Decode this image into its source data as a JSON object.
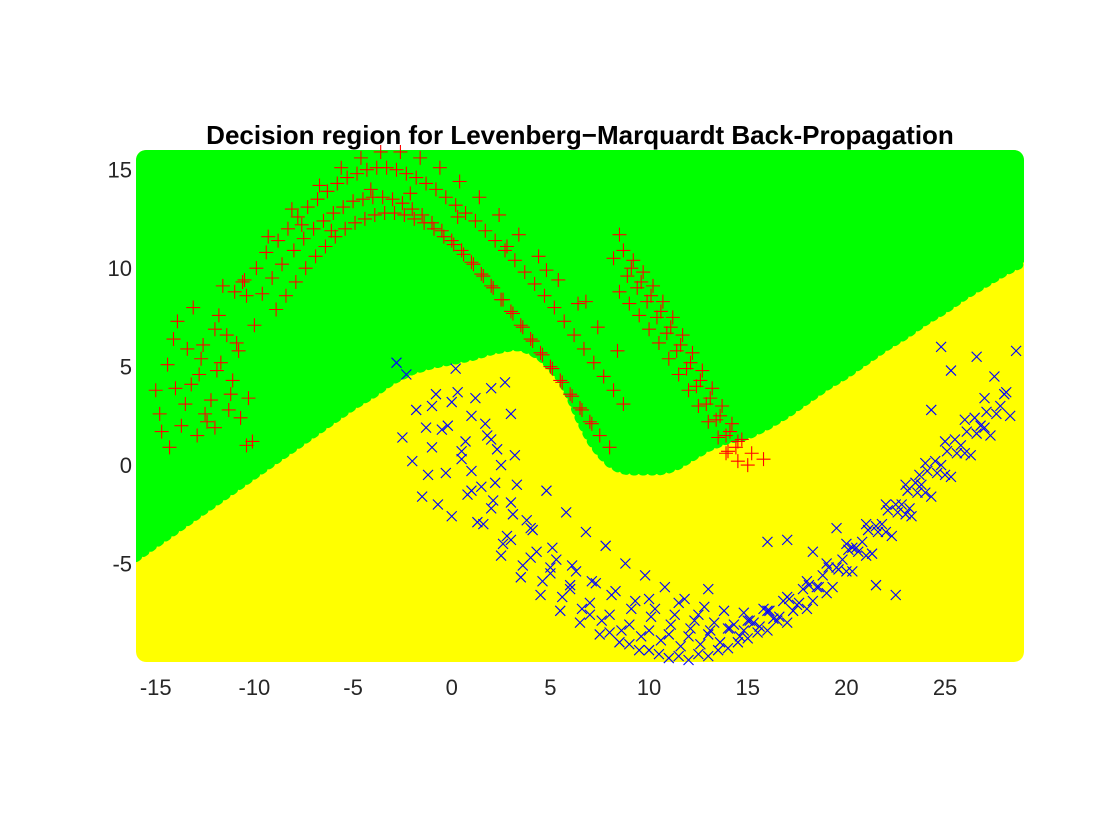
{
  "chart_data": {
    "type": "scatter",
    "title": "Decision region for Levenberg−Marquardt Back-Propagation",
    "xlabel": "",
    "ylabel": "",
    "xlim": [
      -16,
      29
    ],
    "ylim": [
      -10,
      16
    ],
    "xticks": [
      -15,
      -10,
      -5,
      0,
      5,
      10,
      15,
      20,
      25
    ],
    "yticks": [
      -5,
      0,
      5,
      10,
      15
    ],
    "grid": false,
    "background_region": {
      "color": "#ffff00",
      "name": "yellow"
    },
    "regions": [
      {
        "color": "#00ff00",
        "boundary_x": [
          -16,
          -15,
          -14,
          -13,
          -12,
          -11,
          -10,
          -9,
          -8,
          -7,
          -6,
          -5,
          -4,
          -3,
          -2,
          -1,
          0,
          1,
          2,
          3,
          3.5,
          4,
          4.5,
          5,
          5.5,
          6,
          6.5,
          7,
          7.5,
          8,
          8.5,
          9,
          9.5,
          10,
          10.5,
          11,
          11.5,
          12,
          12.5,
          13,
          13.5,
          14,
          14.5,
          15,
          16,
          17,
          18,
          19,
          20,
          21,
          22,
          23,
          24,
          25,
          26,
          27,
          28,
          29
        ],
        "boundary_y": [
          -4.7,
          -4,
          -3.3,
          -2.6,
          -1.9,
          -1.2,
          -0.5,
          0.2,
          0.9,
          1.6,
          2.3,
          3,
          3.6,
          4.3,
          4.8,
          5.1,
          5.3,
          5.5,
          5.8,
          6,
          6,
          5.8,
          5.5,
          5,
          4.4,
          3.5,
          2.3,
          1.3,
          0.6,
          0.1,
          -0.2,
          -0.3,
          -0.3,
          -0.3,
          -0.3,
          -0.2,
          0,
          0.3,
          0.6,
          0.9,
          1.1,
          1.3,
          1.4,
          1.5,
          2,
          2.6,
          3.3,
          4,
          4.6,
          5.3,
          6,
          6.6,
          7.3,
          7.9,
          8.6,
          9.2,
          9.8,
          10.3
        ]
      }
    ],
    "series": [
      {
        "marker": "plus",
        "color": "#ff0000",
        "x": [
          -15.0,
          -14.8,
          -14.4,
          -14.1,
          -14.7,
          -13.9,
          -13.5,
          -13.1,
          -12.8,
          -12.4,
          -12.0,
          -11.6,
          -11.2,
          -10.8,
          -10.4,
          -10.1,
          -14.3,
          -13.7,
          -13.2,
          -12.7,
          -12.2,
          -11.8,
          -11.3,
          -10.9,
          -10.5,
          -12.9,
          -12.5,
          -11.9,
          -11.4,
          -13.4,
          -12.0,
          -11.1,
          -10.7,
          -14.0,
          -12.6,
          -11.7,
          -10.3,
          -10.0,
          -10.4,
          -11.0,
          -10.6,
          -9.9,
          -9.4,
          -8.8,
          -8.3,
          -7.8,
          -7.3,
          -6.8,
          -6.3,
          -5.8,
          -5.3,
          -4.8,
          -4.3,
          -3.8,
          -3.3,
          -2.8,
          -2.3,
          -1.8,
          -1.3,
          -0.8,
          -0.3,
          0.2,
          0.7,
          1.2,
          1.7,
          2.2,
          2.7,
          3.2,
          3.7,
          4.2,
          4.7,
          5.2,
          5.7,
          6.2,
          6.7,
          7.2,
          7.7,
          8.2,
          8.7,
          -9.6,
          -9.1,
          -8.6,
          -8.0,
          -7.5,
          -7.0,
          -6.5,
          -6.0,
          -5.5,
          -5.0,
          -4.5,
          -4.0,
          -3.5,
          -3.0,
          -2.5,
          -2.0,
          -1.5,
          -1.0,
          -0.5,
          0.0,
          0.5,
          1.0,
          1.5,
          2.0,
          2.5,
          3.0,
          3.5,
          4.0,
          4.5,
          5.0,
          5.5,
          6.0,
          6.5,
          7.0,
          7.5,
          8.0,
          -8.9,
          -8.4,
          -7.9,
          -7.4,
          -6.9,
          -6.4,
          -5.9,
          -5.4,
          -4.9,
          -4.4,
          -3.9,
          -3.4,
          -2.9,
          -2.4,
          -1.9,
          -1.4,
          -0.9,
          -0.4,
          0.1,
          0.6,
          1.1,
          1.6,
          2.1,
          2.6,
          3.1,
          3.6,
          4.1,
          4.6,
          5.1,
          5.6,
          6.1,
          6.6,
          7.1,
          -9.3,
          -8.1,
          -6.7,
          -5.6,
          -4.6,
          -3.6,
          -2.6,
          -1.6,
          -0.6,
          0.4,
          1.4,
          2.4,
          3.4,
          4.4,
          5.4,
          6.4,
          7.4,
          8.4,
          -7.6,
          -6.1,
          -4.1,
          -2.1,
          0.3,
          2.8,
          4.8,
          6.8,
          8.5,
          8.2,
          8.7,
          9.2,
          9.7,
          10.2,
          10.7,
          11.2,
          11.7,
          12.2,
          12.7,
          13.2,
          13.7,
          14.2,
          14.7,
          15.2,
          8.5,
          9.0,
          9.5,
          10.0,
          10.5,
          11.0,
          11.5,
          12.0,
          12.5,
          13.0,
          13.5,
          14.0,
          14.5,
          15.0,
          8.9,
          9.4,
          9.9,
          10.4,
          10.9,
          11.4,
          11.9,
          12.4,
          12.9,
          13.4,
          13.9,
          14.4,
          9.1,
          9.6,
          10.1,
          10.6,
          11.1,
          11.6,
          12.1,
          12.6,
          13.1,
          13.6,
          14.1,
          15.8,
          13.9,
          14.5
        ],
        "y": [
          3.8,
          2.6,
          5.1,
          6.4,
          1.7,
          7.3,
          3.1,
          8.0,
          4.6,
          2.2,
          6.9,
          9.1,
          3.6,
          5.8,
          8.6,
          1.2,
          0.9,
          2.0,
          4.1,
          5.4,
          3.3,
          7.6,
          2.8,
          6.2,
          9.4,
          1.5,
          2.6,
          4.8,
          6.6,
          5.9,
          1.9,
          4.3,
          2.4,
          3.9,
          6.1,
          5.2,
          3.4,
          7.1,
          1.0,
          8.8,
          9.3,
          10.0,
          10.8,
          11.4,
          12.0,
          12.6,
          13.1,
          13.5,
          13.9,
          14.3,
          14.6,
          14.8,
          15.0,
          15.1,
          15.1,
          15.0,
          14.8,
          14.6,
          14.3,
          14.0,
          13.6,
          13.2,
          12.8,
          12.4,
          11.9,
          11.4,
          10.9,
          10.4,
          9.8,
          9.2,
          8.6,
          8.0,
          7.3,
          6.6,
          5.9,
          5.2,
          4.5,
          3.8,
          3.1,
          8.7,
          9.5,
          10.2,
          10.9,
          11.5,
          12.0,
          12.4,
          12.8,
          13.1,
          13.4,
          13.5,
          13.6,
          13.6,
          13.5,
          13.3,
          13.0,
          12.7,
          12.3,
          11.9,
          11.4,
          10.9,
          10.3,
          9.7,
          9.1,
          8.4,
          7.8,
          7.1,
          6.4,
          5.7,
          5.0,
          4.3,
          3.6,
          2.9,
          2.2,
          1.5,
          0.9,
          7.9,
          8.6,
          9.3,
          10.0,
          10.6,
          11.1,
          11.6,
          12.0,
          12.3,
          12.5,
          12.7,
          12.8,
          12.8,
          12.7,
          12.5,
          12.3,
          12.0,
          11.6,
          11.2,
          10.7,
          10.2,
          9.6,
          9.0,
          8.4,
          7.7,
          7.0,
          6.3,
          5.6,
          4.9,
          4.2,
          3.5,
          2.8,
          2.1,
          11.6,
          13.0,
          14.2,
          15.1,
          15.6,
          15.9,
          15.9,
          15.6,
          15.1,
          14.4,
          13.6,
          12.7,
          11.7,
          10.6,
          9.4,
          8.2,
          7.0,
          5.8,
          12.2,
          11.9,
          14.0,
          13.8,
          12.6,
          11.1,
          9.9,
          8.3,
          11.7,
          10.5,
          10.9,
          10.4,
          9.8,
          9.1,
          8.3,
          7.5,
          6.6,
          5.7,
          4.8,
          3.9,
          3.0,
          2.1,
          1.3,
          0.6,
          8.8,
          8.2,
          7.6,
          6.9,
          6.2,
          5.4,
          4.6,
          3.8,
          3.0,
          2.2,
          1.4,
          0.7,
          0.2,
          0.0,
          9.6,
          9.0,
          8.3,
          7.5,
          6.7,
          5.8,
          4.9,
          4.0,
          3.1,
          2.3,
          1.5,
          0.9,
          10.0,
          9.3,
          8.6,
          7.8,
          7.0,
          6.1,
          5.2,
          4.3,
          3.4,
          2.5,
          1.7,
          0.3,
          0.6,
          1.2
        ]
      },
      {
        "marker": "cross",
        "color": "#0000ff",
        "x": [
          -2.8,
          -2.3,
          -1.8,
          -1.3,
          -0.8,
          -0.3,
          0.2,
          0.7,
          1.2,
          1.7,
          2.2,
          2.7,
          3.2,
          -2.5,
          -2.0,
          -1.5,
          -1.0,
          -0.5,
          0.0,
          0.5,
          1.0,
          1.5,
          2.0,
          2.5,
          3.0,
          -1.2,
          -0.7,
          -0.2,
          0.3,
          0.8,
          1.3,
          1.8,
          2.3,
          2.8,
          3.3,
          3.8,
          4.3,
          4.8,
          5.3,
          5.8,
          6.3,
          6.8,
          7.3,
          7.8,
          8.3,
          8.8,
          9.3,
          9.8,
          10.3,
          10.8,
          11.3,
          11.8,
          12.3,
          12.8,
          13.3,
          13.8,
          14.3,
          14.8,
          15.3,
          15.8,
          16.3,
          16.8,
          17.3,
          17.8,
          18.3,
          18.8,
          19.3,
          19.8,
          20.3,
          20.8,
          21.3,
          21.8,
          22.3,
          22.8,
          23.3,
          23.8,
          24.3,
          24.8,
          25.3,
          25.8,
          26.3,
          26.8,
          27.3,
          27.8,
          28.3,
          0.5,
          1.0,
          1.6,
          2.1,
          2.6,
          3.1,
          3.6,
          4.1,
          4.6,
          5.1,
          5.6,
          6.1,
          6.6,
          7.1,
          7.6,
          8.1,
          8.6,
          9.1,
          9.6,
          10.1,
          10.6,
          11.1,
          11.6,
          12.1,
          12.6,
          13.1,
          13.6,
          14.1,
          14.6,
          15.1,
          15.6,
          16.1,
          16.6,
          17.1,
          17.6,
          18.1,
          18.6,
          19.1,
          19.6,
          20.1,
          20.6,
          21.1,
          21.6,
          22.1,
          22.6,
          23.1,
          23.6,
          24.1,
          24.6,
          25.1,
          25.6,
          26.1,
          26.6,
          27.1,
          27.6,
          28.1,
          2.0,
          2.5,
          3.0,
          3.5,
          4.0,
          4.5,
          5.0,
          5.5,
          6.0,
          6.5,
          7.0,
          7.5,
          8.0,
          8.5,
          9.0,
          9.5,
          10.0,
          10.5,
          11.0,
          11.5,
          12.0,
          12.5,
          13.0,
          13.5,
          14.0,
          14.5,
          15.0,
          15.5,
          16.0,
          16.5,
          17.0,
          17.5,
          18.0,
          18.5,
          19.0,
          19.5,
          20.0,
          20.5,
          21.0,
          21.5,
          22.0,
          22.5,
          23.0,
          23.5,
          24.0,
          24.5,
          25.0,
          25.5,
          26.0,
          26.5,
          27.0,
          -1.0,
          0.0,
          1.0,
          2.0,
          3.0,
          4.0,
          5.0,
          6.0,
          7.0,
          8.0,
          9.0,
          10.0,
          11.0,
          12.0,
          13.0,
          14.0,
          15.0,
          16.0,
          17.0,
          18.0,
          19.0,
          20.0,
          21.0,
          22.0,
          23.0,
          24.0,
          25.0,
          26.0,
          27.0,
          28.0,
          10.0,
          11.5,
          12.5,
          13.0,
          14.8,
          16.0,
          17.0,
          18.3,
          19.5,
          20.3,
          21.5,
          22.5,
          23.2,
          23.7,
          24.3,
          25.3,
          26.6,
          27.5,
          28.6,
          24.8
        ],
        "y": [
          5.2,
          4.6,
          2.8,
          1.9,
          3.6,
          -0.4,
          4.9,
          1.2,
          3.4,
          2.1,
          -0.9,
          4.2,
          0.5,
          1.4,
          0.2,
          -1.6,
          3.0,
          1.8,
          -2.6,
          0.7,
          2.5,
          -1.1,
          3.9,
          0.0,
          2.6,
          -0.5,
          -2.0,
          2.0,
          3.7,
          -1.5,
          -2.9,
          1.5,
          0.8,
          -3.6,
          -1.0,
          -2.8,
          -4.4,
          -1.3,
          -4.8,
          -2.4,
          -5.4,
          -3.4,
          -6.0,
          -4.1,
          -6.4,
          -5.0,
          -6.9,
          -5.6,
          -7.3,
          -6.2,
          -7.6,
          -6.8,
          -7.9,
          -7.2,
          -8.0,
          -7.4,
          -8.1,
          -7.5,
          -8.0,
          -7.3,
          -7.8,
          -6.9,
          -7.4,
          -6.3,
          -6.9,
          -5.6,
          -6.2,
          -4.8,
          -5.4,
          -3.9,
          -4.5,
          -3.0,
          -3.6,
          -2.0,
          -2.6,
          -1.0,
          -1.6,
          0.0,
          -0.6,
          1.0,
          0.5,
          2.0,
          1.5,
          3.0,
          2.5,
          0.3,
          -1.3,
          -3.0,
          -1.8,
          -4.0,
          -2.5,
          -5.1,
          -3.3,
          -5.9,
          -4.2,
          -6.7,
          -5.1,
          -7.3,
          -5.9,
          -7.9,
          -6.6,
          -8.4,
          -7.3,
          -8.7,
          -7.7,
          -8.9,
          -8.1,
          -9.2,
          -8.3,
          -9.1,
          -8.4,
          -9.0,
          -8.3,
          -8.7,
          -7.9,
          -8.2,
          -7.4,
          -7.7,
          -6.8,
          -7.0,
          -6.1,
          -6.2,
          -5.2,
          -5.3,
          -4.3,
          -4.4,
          -3.3,
          -3.4,
          -2.3,
          -2.4,
          -1.3,
          -1.4,
          -0.3,
          -0.4,
          0.7,
          0.6,
          1.7,
          1.6,
          2.7,
          2.6,
          3.7,
          -2.2,
          -4.6,
          -3.8,
          -5.7,
          -4.7,
          -6.6,
          -5.5,
          -7.4,
          -6.3,
          -8.0,
          -7.0,
          -8.6,
          -7.6,
          -9.0,
          -8.1,
          -9.4,
          -8.4,
          -9.6,
          -8.6,
          -9.7,
          -8.7,
          -9.6,
          -8.6,
          -9.4,
          -8.3,
          -9.0,
          -7.9,
          -8.5,
          -7.4,
          -7.9,
          -6.7,
          -7.1,
          -5.9,
          -6.2,
          -5.0,
          -5.2,
          -4.0,
          -4.2,
          -3.0,
          -3.1,
          -2.0,
          -2.0,
          -1.0,
          -0.9,
          0.1,
          0.2,
          1.2,
          1.3,
          2.3,
          2.4,
          3.4,
          0.9,
          3.2,
          -0.3,
          1.3,
          -1.9,
          -3.2,
          -5.2,
          -6.1,
          -7.6,
          -8.5,
          -9.1,
          -9.4,
          -9.8,
          -9.9,
          -9.7,
          -9.3,
          -8.8,
          -8.4,
          -8.0,
          -7.3,
          -6.5,
          -5.4,
          -4.6,
          -3.4,
          -2.5,
          -1.4,
          -0.5,
          0.6,
          1.9,
          3.6,
          -6.8,
          -7.0,
          -7.6,
          -6.3,
          -8.4,
          -3.9,
          -3.8,
          -4.4,
          -3.2,
          -4.2,
          -6.1,
          -6.6,
          -2.2,
          -0.5,
          2.8,
          4.8,
          5.5,
          4.5,
          5.8,
          6.0
        ]
      }
    ]
  }
}
